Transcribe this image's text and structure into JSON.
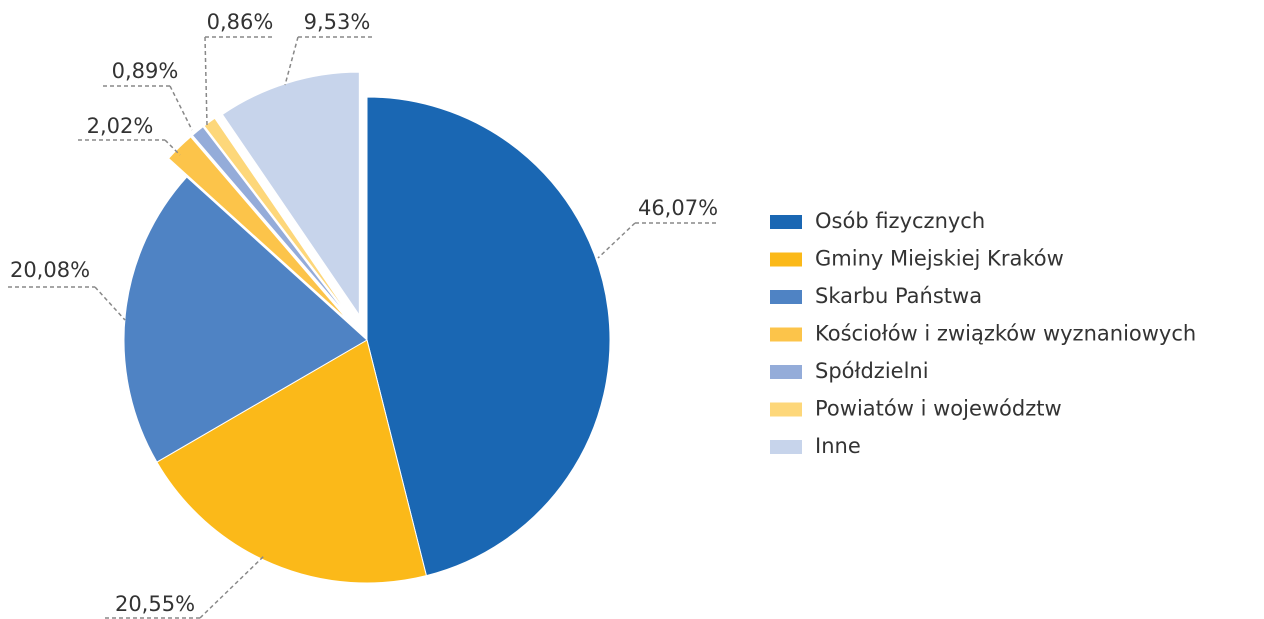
{
  "chart_data": {
    "type": "pie",
    "categories": [
      "Osób fizycznych",
      "Gminy Miejskiej Kraków",
      "Skarbu Państwa",
      "Kościołów i związków wyznaniowych",
      "Spółdzielni",
      "Powiatów i województw",
      "Inne"
    ],
    "values": [
      46.07,
      20.55,
      20.08,
      2.02,
      0.89,
      0.86,
      9.53
    ],
    "value_labels": [
      "46,07%",
      "20,55%",
      "20,08%",
      "2,02%",
      "0,89%",
      "0,86%",
      "9,53%"
    ],
    "colors": [
      "#1a67b3",
      "#fbb919",
      "#4f83c4",
      "#fcc44a",
      "#94acd9",
      "#fdd77a",
      "#c7d4eb"
    ],
    "legend": "right"
  }
}
